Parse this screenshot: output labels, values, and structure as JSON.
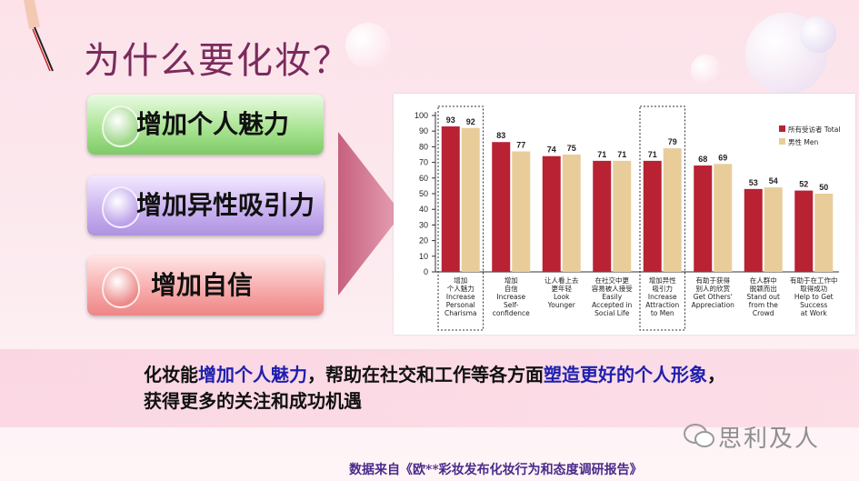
{
  "slide": {
    "title": "为什么要化妆？",
    "pills": [
      {
        "label": "增加个人魅力",
        "color": "green"
      },
      {
        "label": "增加异性吸引力",
        "color": "purple"
      },
      {
        "label": "增加自信",
        "color": "red"
      }
    ],
    "summary": {
      "part1": "化妆能",
      "part2": "增加个人魅力",
      "part3": "，帮助在社交和工作等各方面",
      "part4": "塑造更好的个人形象",
      "part5": "，获得更多的关注和成功机遇"
    },
    "source": "数据来自《欧**彩妆发布化妆行为和态度调研报告》",
    "watermark": "思利及人"
  },
  "colors": {
    "all_respondents": "#b82233",
    "men": "#e8cd9b",
    "title": "#7a2b5c",
    "highlight": "#1f1fae"
  },
  "chart_data": {
    "type": "bar",
    "ylim": [
      0,
      100
    ],
    "yticks": [
      0,
      10,
      20,
      30,
      40,
      50,
      60,
      70,
      80,
      90,
      100
    ],
    "categories": [
      {
        "zh": "增加\n个人魅力",
        "en": "Increase\nPersonal\nCharisma"
      },
      {
        "zh": "增加\n自信",
        "en": "Increase\nSelf-\nconfidence"
      },
      {
        "zh": "让人看上去\n更年轻",
        "en": "Look\nYounger"
      },
      {
        "zh": "在社交中更\n容易被人接受",
        "en": "Easily\nAccepted in\nSocial Life"
      },
      {
        "zh": "增加异性\n吸引力",
        "en": "Increase\nAttraction\nto Men"
      },
      {
        "zh": "有助于获得\n别人的欣赏",
        "en": "Get Others'\nAppreciation"
      },
      {
        "zh": "在人群中\n脱颖而出",
        "en": "Stand out\nfrom the\nCrowd"
      },
      {
        "zh": "有助于在工作中\n取得成功",
        "en": "Help to Get\nSuccess\nat Work"
      }
    ],
    "series": [
      {
        "name": "所有受访者 Total",
        "values": [
          93,
          83,
          74,
          71,
          71,
          68,
          53,
          52
        ]
      },
      {
        "name": "男性 Men",
        "values": [
          92,
          77,
          75,
          71,
          79,
          69,
          54,
          50
        ]
      }
    ],
    "highlighted_categories": [
      0,
      4
    ],
    "legend": "top-right"
  }
}
